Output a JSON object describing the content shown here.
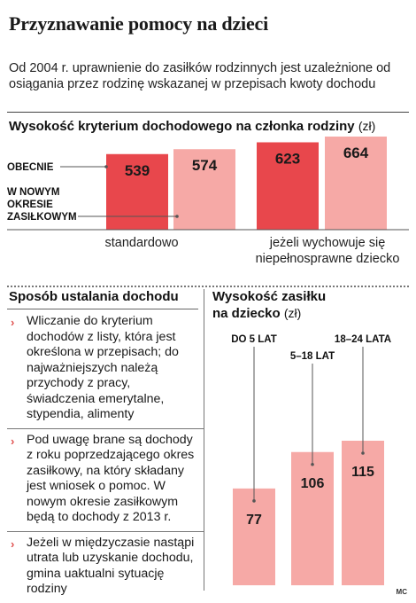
{
  "title": "Przyznawanie pomocy na dzieci",
  "subtitle": "Od 2004 r. uprawnienie do zasiłków rodzinnych jest uzależnione od osiągania przez rodzinę wskazanej w przepisach kwoty dochodu",
  "credit": "MC",
  "colors": {
    "current": "#e8474c",
    "new": "#f6a9a6",
    "single": "#f6a9a6",
    "accent": "#e0514f"
  },
  "section1": {
    "title": "Wysokość kryterium dochodowego na członka rodziny",
    "unit": "(zł)"
  },
  "section2": {
    "title": "Sposób ustalania dochodu"
  },
  "section3": {
    "title_line1": "Wysokość zasiłku",
    "title_line2": "na dziecko",
    "unit": "(zł)"
  },
  "bullets": [
    "Wliczanie do kryterium dochodów z listy, która jest określona w przepisach; do najważniejszych należą przychody z pracy, świadczenia emerytalne, stypendia, alimenty",
    "Pod uwagę brane są dochody z roku poprzedzającego okres zasiłkowy, na który składany jest wniosek o pomoc. W nowym okresie zasiłkowym będą to dochody z 2013 r.",
    "Jeżeli w międzyczasie nastąpi utrata lub uzyskanie dochodu, gmina uaktualni sytuację rodziny"
  ],
  "chart_data": [
    {
      "type": "bar",
      "title": "Wysokość kryterium dochodowego na członka rodziny (zł)",
      "categories": [
        "standardowo",
        "jeżeli wychowuje się niepełnosprawne dziecko"
      ],
      "series": [
        {
          "name": "OBECNIE",
          "values": [
            539,
            623
          ]
        },
        {
          "name": "W NOWYM OKRESIE ZASIŁKOWYM",
          "values": [
            574,
            664
          ]
        }
      ]
    },
    {
      "type": "bar",
      "title": "Wysokość zasiłku na dziecko (zł)",
      "categories": [
        "DO 5 LAT",
        "5–18 LAT",
        "18–24 LATA"
      ],
      "values": [
        77,
        106,
        115
      ]
    }
  ]
}
